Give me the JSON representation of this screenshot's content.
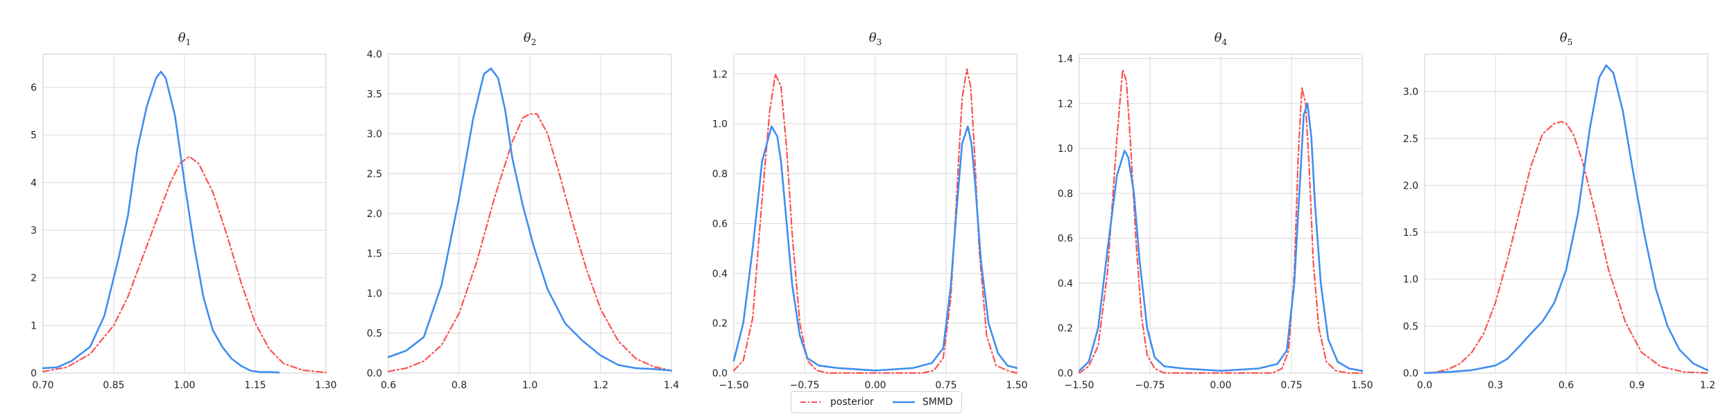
{
  "colors": {
    "posterior": "#fa5252",
    "smmd": "#3f8ef0",
    "grid": "#d9d9d9",
    "spine": "#cccccc",
    "text": "#222222"
  },
  "legend": {
    "placement": "bottom-center",
    "posterior_label": "posterior",
    "smmd_label": "SMMD"
  },
  "chart_data": [
    {
      "type": "line",
      "title": "θ",
      "title_sub": "1",
      "grid": true,
      "xlim": [
        0.7,
        1.3
      ],
      "ylim": [
        0,
        6.7
      ],
      "xticks": [
        0.7,
        0.85,
        1.0,
        1.15,
        1.3
      ],
      "xtick_labels": [
        "0.70",
        "0.85",
        "1.00",
        "1.15",
        "1.30"
      ],
      "yticks": [
        0,
        1,
        2,
        3,
        4,
        5,
        6
      ],
      "ytick_labels": [
        "0",
        "1",
        "2",
        "3",
        "4",
        "5",
        "6"
      ],
      "series": [
        {
          "name": "posterior",
          "x": [
            0.7,
            0.75,
            0.8,
            0.85,
            0.88,
            0.91,
            0.94,
            0.97,
            0.99,
            1.01,
            1.03,
            1.06,
            1.09,
            1.12,
            1.15,
            1.18,
            1.21,
            1.25,
            1.3
          ],
          "values": [
            0.03,
            0.12,
            0.4,
            1.0,
            1.6,
            2.4,
            3.2,
            4.0,
            4.4,
            4.55,
            4.4,
            3.8,
            2.9,
            1.9,
            1.05,
            0.5,
            0.2,
            0.06,
            0.01
          ]
        },
        {
          "name": "SMMD",
          "x": [
            0.7,
            0.73,
            0.76,
            0.78,
            0.8,
            0.83,
            0.86,
            0.88,
            0.9,
            0.92,
            0.94,
            0.95,
            0.96,
            0.98,
            1.0,
            1.02,
            1.04,
            1.06,
            1.08,
            1.1,
            1.12,
            1.14,
            1.16,
            1.18,
            1.2
          ],
          "values": [
            0.1,
            0.12,
            0.25,
            0.4,
            0.55,
            1.2,
            2.4,
            3.3,
            4.7,
            5.6,
            6.2,
            6.33,
            6.2,
            5.4,
            4.0,
            2.7,
            1.6,
            0.9,
            0.55,
            0.3,
            0.15,
            0.05,
            0.02,
            0.02,
            0.01
          ]
        }
      ]
    },
    {
      "type": "line",
      "title": "θ",
      "title_sub": "2",
      "grid": true,
      "xlim": [
        0.6,
        1.4
      ],
      "ylim": [
        0,
        4.0
      ],
      "xticks": [
        0.6,
        0.8,
        1.0,
        1.2,
        1.4
      ],
      "xtick_labels": [
        "0.6",
        "0.8",
        "1.0",
        "1.2",
        "1.4"
      ],
      "yticks": [
        0,
        0.5,
        1.0,
        1.5,
        2.0,
        2.5,
        3.0,
        3.5,
        4.0
      ],
      "ytick_labels": [
        "0.0",
        "0.5",
        "1.0",
        "1.5",
        "2.0",
        "2.5",
        "3.0",
        "3.5",
        "4.0"
      ],
      "series": [
        {
          "name": "posterior",
          "x": [
            0.6,
            0.65,
            0.7,
            0.75,
            0.8,
            0.85,
            0.9,
            0.95,
            0.98,
            1.0,
            1.02,
            1.05,
            1.08,
            1.12,
            1.16,
            1.2,
            1.25,
            1.3,
            1.35,
            1.4
          ],
          "values": [
            0.02,
            0.06,
            0.15,
            0.35,
            0.75,
            1.4,
            2.2,
            2.9,
            3.2,
            3.25,
            3.25,
            3.0,
            2.55,
            1.9,
            1.3,
            0.8,
            0.4,
            0.18,
            0.08,
            0.03
          ]
        },
        {
          "name": "SMMD",
          "x": [
            0.6,
            0.65,
            0.7,
            0.75,
            0.8,
            0.84,
            0.87,
            0.89,
            0.91,
            0.93,
            0.95,
            0.98,
            1.01,
            1.05,
            1.1,
            1.15,
            1.2,
            1.25,
            1.3,
            1.35,
            1.4
          ],
          "values": [
            0.2,
            0.28,
            0.45,
            1.1,
            2.2,
            3.2,
            3.75,
            3.82,
            3.7,
            3.3,
            2.7,
            2.1,
            1.6,
            1.05,
            0.62,
            0.4,
            0.22,
            0.1,
            0.06,
            0.05,
            0.03
          ]
        }
      ]
    },
    {
      "type": "line",
      "title": "θ",
      "title_sub": "3",
      "grid": true,
      "xlim": [
        -1.5,
        1.5
      ],
      "ylim": [
        0,
        1.28
      ],
      "xticks": [
        -1.5,
        -0.75,
        0.0,
        0.75,
        1.5
      ],
      "xtick_labels": [
        "−1.50",
        "−0.75",
        "0.00",
        "0.75",
        "1.50"
      ],
      "yticks": [
        0,
        0.2,
        0.4,
        0.6,
        0.8,
        1.0,
        1.2
      ],
      "ytick_labels": [
        "0.0",
        "0.2",
        "0.4",
        "0.6",
        "0.8",
        "1.0",
        "1.2"
      ],
      "series": [
        {
          "name": "posterior",
          "x": [
            -1.5,
            -1.4,
            -1.3,
            -1.2,
            -1.12,
            -1.06,
            -1.0,
            -0.94,
            -0.88,
            -0.8,
            -0.72,
            -0.62,
            -0.5,
            0.0,
            0.5,
            0.62,
            0.72,
            0.8,
            0.86,
            0.92,
            0.97,
            1.01,
            1.05,
            1.1,
            1.18,
            1.28,
            1.4,
            1.5
          ],
          "values": [
            0.01,
            0.05,
            0.22,
            0.7,
            1.05,
            1.2,
            1.15,
            0.9,
            0.55,
            0.2,
            0.05,
            0.01,
            0.0,
            0.0,
            0.0,
            0.01,
            0.06,
            0.3,
            0.7,
            1.1,
            1.22,
            1.15,
            0.9,
            0.5,
            0.15,
            0.03,
            0.01,
            0.0
          ]
        },
        {
          "name": "SMMD",
          "x": [
            -1.5,
            -1.4,
            -1.3,
            -1.2,
            -1.1,
            -1.04,
            -1.0,
            -0.94,
            -0.88,
            -0.8,
            -0.72,
            -0.6,
            -0.4,
            0.0,
            0.4,
            0.6,
            0.72,
            0.8,
            0.86,
            0.92,
            0.98,
            1.02,
            1.06,
            1.12,
            1.2,
            1.3,
            1.4,
            1.5
          ],
          "values": [
            0.05,
            0.2,
            0.5,
            0.85,
            0.99,
            0.95,
            0.85,
            0.6,
            0.35,
            0.15,
            0.06,
            0.03,
            0.02,
            0.01,
            0.02,
            0.04,
            0.1,
            0.35,
            0.65,
            0.92,
            0.99,
            0.92,
            0.75,
            0.45,
            0.2,
            0.08,
            0.03,
            0.02
          ]
        }
      ]
    },
    {
      "type": "line",
      "title": "θ",
      "title_sub": "4",
      "grid": true,
      "xlim": [
        -1.5,
        1.5
      ],
      "ylim": [
        0,
        1.42
      ],
      "xticks": [
        -1.5,
        -0.75,
        0.0,
        0.75,
        1.5
      ],
      "xtick_labels": [
        "−1.50",
        "−0.75",
        "0.00",
        "0.75",
        "1.50"
      ],
      "yticks": [
        0,
        0.2,
        0.4,
        0.6,
        0.8,
        1.0,
        1.2,
        1.4
      ],
      "ytick_labels": [
        "0.0",
        "0.2",
        "0.4",
        "0.6",
        "0.8",
        "1.0",
        "1.2",
        "1.4"
      ],
      "series": [
        {
          "name": "posterior",
          "x": [
            -1.5,
            -1.4,
            -1.3,
            -1.2,
            -1.1,
            -1.04,
            -1.0,
            -0.96,
            -0.9,
            -0.84,
            -0.78,
            -0.7,
            -0.6,
            0.0,
            0.55,
            0.65,
            0.72,
            0.78,
            0.82,
            0.86,
            0.9,
            0.94,
            0.98,
            1.04,
            1.12,
            1.22,
            1.35,
            1.5
          ],
          "values": [
            0.0,
            0.03,
            0.12,
            0.45,
            1.05,
            1.35,
            1.3,
            1.05,
            0.6,
            0.25,
            0.08,
            0.02,
            0.0,
            0.0,
            0.0,
            0.02,
            0.1,
            0.45,
            0.95,
            1.27,
            1.2,
            0.9,
            0.5,
            0.2,
            0.05,
            0.01,
            0.0,
            0.0
          ]
        },
        {
          "name": "SMMD",
          "x": [
            -1.5,
            -1.4,
            -1.3,
            -1.2,
            -1.1,
            -1.02,
            -0.98,
            -0.92,
            -0.86,
            -0.78,
            -0.7,
            -0.6,
            -0.4,
            0.0,
            0.4,
            0.6,
            0.7,
            0.78,
            0.84,
            0.88,
            0.92,
            0.96,
            1.0,
            1.06,
            1.14,
            1.24,
            1.36,
            1.5
          ],
          "values": [
            0.01,
            0.05,
            0.2,
            0.55,
            0.88,
            0.99,
            0.96,
            0.8,
            0.5,
            0.2,
            0.07,
            0.03,
            0.02,
            0.01,
            0.02,
            0.04,
            0.1,
            0.4,
            0.85,
            1.15,
            1.2,
            1.05,
            0.75,
            0.4,
            0.15,
            0.05,
            0.02,
            0.01
          ]
        }
      ]
    },
    {
      "type": "line",
      "title": "θ",
      "title_sub": "5",
      "grid": true,
      "xlim": [
        0.0,
        1.2
      ],
      "ylim": [
        0,
        3.4
      ],
      "xticks": [
        0.0,
        0.3,
        0.6,
        0.9,
        1.2
      ],
      "xtick_labels": [
        "0.0",
        "0.3",
        "0.6",
        "0.9",
        "1.2"
      ],
      "yticks": [
        0,
        0.5,
        1.0,
        1.5,
        2.0,
        2.5,
        3.0
      ],
      "ytick_labels": [
        "0.0",
        "0.5",
        "1.0",
        "1.5",
        "2.0",
        "2.5",
        "3.0"
      ],
      "series": [
        {
          "name": "posterior",
          "x": [
            0.0,
            0.05,
            0.1,
            0.15,
            0.2,
            0.25,
            0.3,
            0.35,
            0.4,
            0.45,
            0.5,
            0.55,
            0.58,
            0.6,
            0.63,
            0.67,
            0.72,
            0.78,
            0.85,
            0.92,
            1.0,
            1.1,
            1.2
          ],
          "values": [
            0.0,
            0.01,
            0.04,
            0.1,
            0.22,
            0.42,
            0.75,
            1.2,
            1.7,
            2.2,
            2.55,
            2.66,
            2.68,
            2.66,
            2.55,
            2.25,
            1.75,
            1.1,
            0.55,
            0.22,
            0.07,
            0.01,
            0.0
          ]
        },
        {
          "name": "SMMD",
          "x": [
            0.0,
            0.1,
            0.2,
            0.3,
            0.35,
            0.4,
            0.45,
            0.5,
            0.55,
            0.6,
            0.65,
            0.7,
            0.74,
            0.77,
            0.8,
            0.84,
            0.88,
            0.93,
            0.98,
            1.03,
            1.08,
            1.14,
            1.2
          ],
          "values": [
            0.0,
            0.01,
            0.03,
            0.08,
            0.15,
            0.28,
            0.42,
            0.55,
            0.75,
            1.1,
            1.7,
            2.6,
            3.15,
            3.28,
            3.2,
            2.8,
            2.2,
            1.5,
            0.9,
            0.5,
            0.25,
            0.1,
            0.03
          ]
        }
      ]
    }
  ]
}
